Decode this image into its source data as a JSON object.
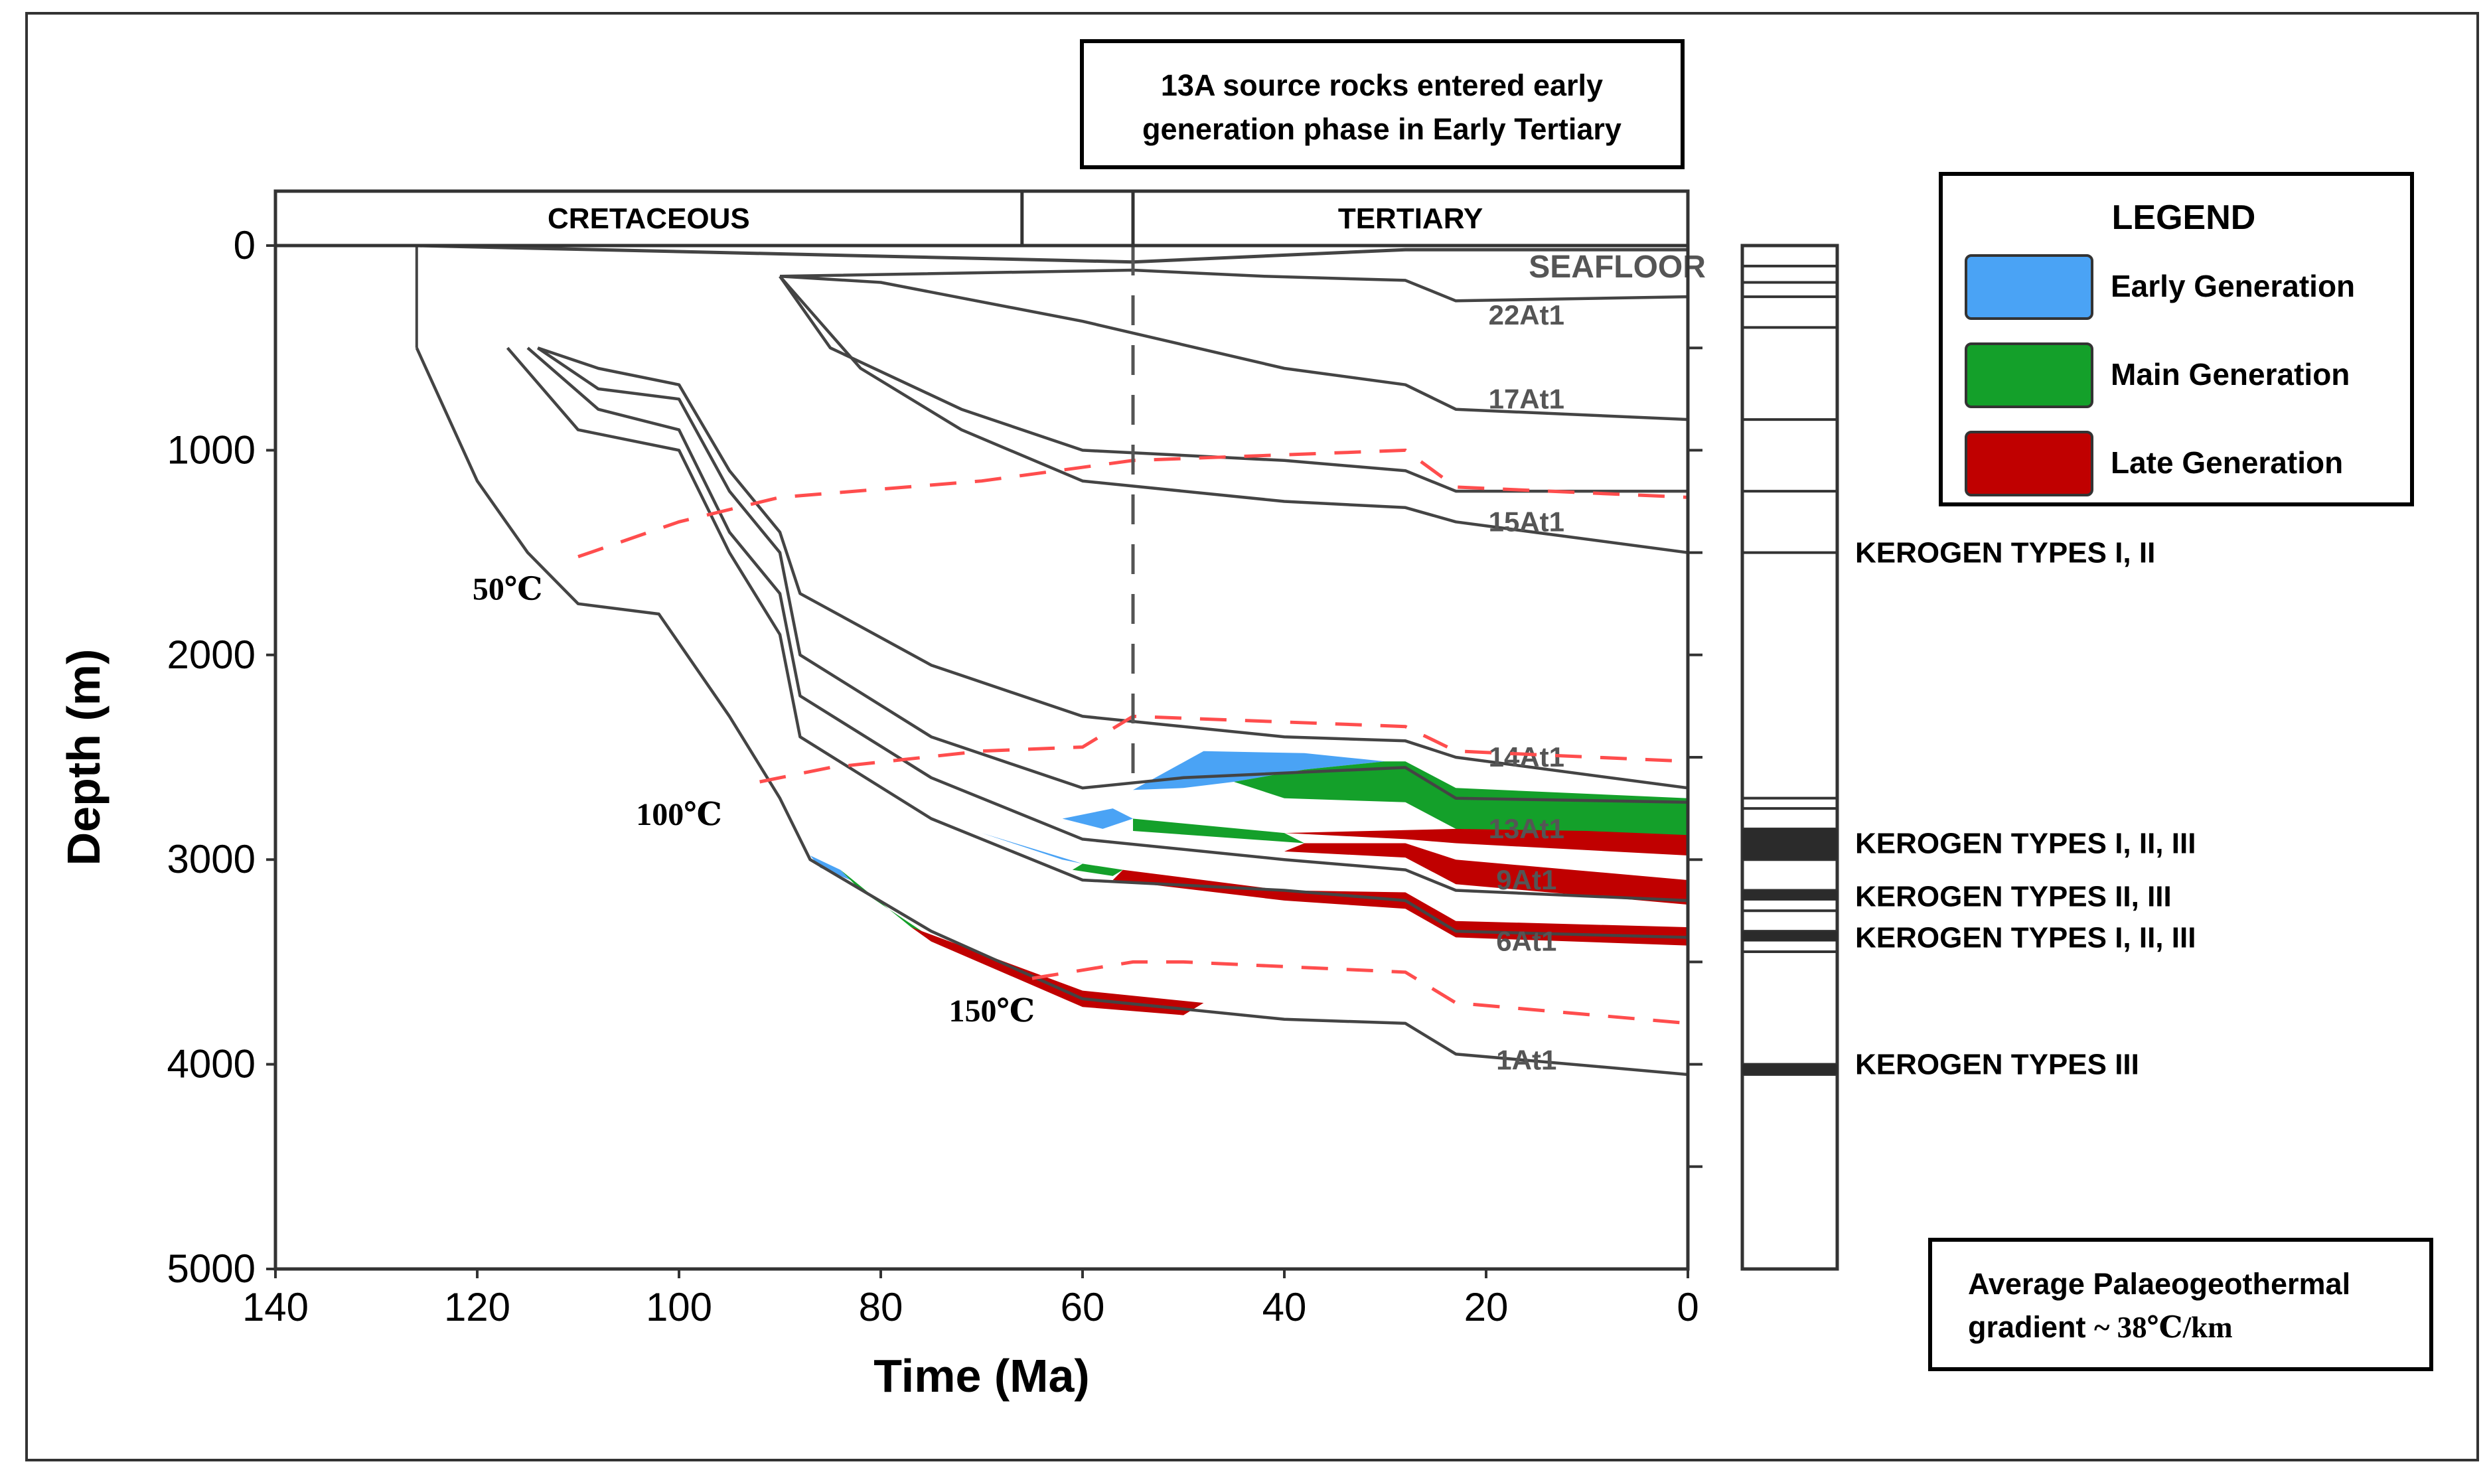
{
  "chart_data": {
    "type": "burial-history",
    "xlabel": "Time (Ma)",
    "ylabel": "Depth (m)",
    "xlim": [
      140,
      0
    ],
    "ylim": [
      0,
      5000
    ],
    "x_ticks": [
      140,
      120,
      100,
      80,
      60,
      40,
      20,
      0
    ],
    "y_ticks": [
      0,
      1000,
      2000,
      3000,
      4000,
      5000
    ],
    "periods": [
      {
        "name": "CRETACEOUS",
        "start": 140,
        "end": 66
      },
      {
        "name": "",
        "start": 66,
        "end": 55
      },
      {
        "name": "TERTIARY",
        "start": 55,
        "end": 0
      }
    ],
    "period_boundary_line": 55,
    "annotation": "13A source rocks entered early generation phase in Early Tertiary",
    "seafloor_label": "SEAFLOOR",
    "seafloor": [
      [
        126,
        0
      ],
      [
        55,
        80
      ],
      [
        28,
        20
      ],
      [
        0,
        20
      ]
    ],
    "horizons": [
      {
        "name": "22At1",
        "label_depth": 340,
        "points": [
          [
            90,
            150
          ],
          [
            55,
            120
          ],
          [
            42,
            150
          ],
          [
            28,
            170
          ],
          [
            23,
            270
          ],
          [
            0,
            250
          ]
        ]
      },
      {
        "name": "17At1",
        "label_depth": 750,
        "points": [
          [
            90,
            150
          ],
          [
            80,
            180
          ],
          [
            60,
            370
          ],
          [
            40,
            600
          ],
          [
            28,
            680
          ],
          [
            23,
            800
          ],
          [
            0,
            850
          ]
        ]
      },
      {
        "name": "",
        "label_depth": null,
        "points": [
          [
            90,
            150
          ],
          [
            85,
            500
          ],
          [
            72,
            800
          ],
          [
            60,
            1000
          ],
          [
            40,
            1050
          ],
          [
            28,
            1100
          ],
          [
            23,
            1200
          ],
          [
            0,
            1200
          ]
        ]
      },
      {
        "name": "15At1",
        "label_depth": 1350,
        "points": [
          [
            90,
            150
          ],
          [
            82,
            600
          ],
          [
            72,
            900
          ],
          [
            60,
            1150
          ],
          [
            40,
            1250
          ],
          [
            28,
            1280
          ],
          [
            23,
            1350
          ],
          [
            0,
            1500
          ]
        ]
      },
      {
        "name": "14At1",
        "label_depth": 2500,
        "points": [
          [
            114,
            500
          ],
          [
            108,
            600
          ],
          [
            100,
            680
          ],
          [
            95,
            1100
          ],
          [
            90,
            1400
          ],
          [
            88,
            1700
          ],
          [
            75,
            2050
          ],
          [
            60,
            2300
          ],
          [
            40,
            2400
          ],
          [
            28,
            2420
          ],
          [
            23,
            2500
          ],
          [
            0,
            2650
          ]
        ]
      },
      {
        "name": "13At1",
        "label_depth": 2850,
        "points": [
          [
            114,
            500
          ],
          [
            108,
            700
          ],
          [
            100,
            750
          ],
          [
            95,
            1200
          ],
          [
            90,
            1500
          ],
          [
            88,
            2000
          ],
          [
            75,
            2400
          ],
          [
            60,
            2650
          ],
          [
            50,
            2600
          ],
          [
            28,
            2550
          ],
          [
            23,
            2700
          ],
          [
            0,
            2720
          ]
        ]
      },
      {
        "name": "9At1",
        "label_depth": 3100,
        "points": [
          [
            115,
            500
          ],
          [
            108,
            800
          ],
          [
            100,
            900
          ],
          [
            95,
            1400
          ],
          [
            90,
            1700
          ],
          [
            88,
            2200
          ],
          [
            75,
            2600
          ],
          [
            60,
            2900
          ],
          [
            40,
            3000
          ],
          [
            28,
            3050
          ],
          [
            23,
            3150
          ],
          [
            0,
            3200
          ]
        ]
      },
      {
        "name": "6At1",
        "label_depth": 3400,
        "points": [
          [
            117,
            500
          ],
          [
            110,
            900
          ],
          [
            100,
            1000
          ],
          [
            95,
            1500
          ],
          [
            90,
            1900
          ],
          [
            88,
            2400
          ],
          [
            75,
            2800
          ],
          [
            60,
            3100
          ],
          [
            40,
            3150
          ],
          [
            28,
            3200
          ],
          [
            23,
            3350
          ],
          [
            0,
            3380
          ]
        ]
      },
      {
        "name": "1At1",
        "label_depth": 3980,
        "points": [
          [
            126,
            500
          ],
          [
            120,
            1150
          ],
          [
            115,
            1500
          ],
          [
            110,
            1750
          ],
          [
            102,
            1800
          ],
          [
            95,
            2300
          ],
          [
            90,
            2700
          ],
          [
            87,
            3000
          ],
          [
            75,
            3350
          ],
          [
            60,
            3680
          ],
          [
            40,
            3780
          ],
          [
            28,
            3800
          ],
          [
            23,
            3950
          ],
          [
            0,
            4050
          ]
        ]
      }
    ],
    "isotherms": [
      {
        "label": "50℃",
        "points": [
          [
            110,
            1520
          ],
          [
            100,
            1350
          ],
          [
            90,
            1230
          ],
          [
            70,
            1150
          ],
          [
            55,
            1050
          ],
          [
            28,
            1000
          ],
          [
            23,
            1180
          ],
          [
            0,
            1230
          ]
        ]
      },
      {
        "label": "100℃",
        "points": [
          [
            92,
            2620
          ],
          [
            85,
            2550
          ],
          [
            70,
            2470
          ],
          [
            60,
            2450
          ],
          [
            55,
            2300
          ],
          [
            28,
            2350
          ],
          [
            23,
            2470
          ],
          [
            0,
            2520
          ]
        ]
      },
      {
        "label": "150℃",
        "points": [
          [
            65,
            3580
          ],
          [
            55,
            3500
          ],
          [
            50,
            3500
          ],
          [
            28,
            3550
          ],
          [
            23,
            3700
          ],
          [
            0,
            3800
          ]
        ]
      }
    ],
    "generation_zones": [
      {
        "zone": "early",
        "polygon": [
          [
            55,
            2660
          ],
          [
            48,
            2470
          ],
          [
            38,
            2480
          ],
          [
            30,
            2520
          ],
          [
            38,
            2560
          ],
          [
            45,
            2620
          ],
          [
            50,
            2650
          ]
        ]
      },
      {
        "zone": "main",
        "polygon": [
          [
            45,
            2620
          ],
          [
            38,
            2560
          ],
          [
            30,
            2520
          ],
          [
            28,
            2520
          ],
          [
            23,
            2650
          ],
          [
            0,
            2700
          ],
          [
            0,
            2900
          ],
          [
            10,
            2870
          ],
          [
            23,
            2850
          ],
          [
            28,
            2720
          ],
          [
            40,
            2700
          ]
        ]
      },
      {
        "zone": "late",
        "polygon": [
          [
            0,
            2880
          ],
          [
            0,
            2980
          ],
          [
            23,
            2920
          ],
          [
            28,
            2900
          ],
          [
            40,
            2870
          ],
          [
            23,
            2850
          ],
          [
            10,
            2860
          ]
        ]
      },
      {
        "zone": "early",
        "polygon": [
          [
            62,
            2800
          ],
          [
            58,
            2850
          ],
          [
            55,
            2800
          ],
          [
            57,
            2750
          ]
        ]
      },
      {
        "zone": "main",
        "polygon": [
          [
            55,
            2800
          ],
          [
            40,
            2870
          ],
          [
            38,
            2920
          ],
          [
            55,
            2860
          ]
        ]
      },
      {
        "zone": "late",
        "polygon": [
          [
            38,
            2920
          ],
          [
            28,
            2920
          ],
          [
            23,
            3000
          ],
          [
            0,
            3100
          ],
          [
            0,
            3220
          ],
          [
            23,
            3120
          ],
          [
            28,
            2990
          ],
          [
            40,
            2960
          ]
        ]
      },
      {
        "zone": "early",
        "polygon": [
          [
            70,
            2870
          ],
          [
            62,
            3000
          ],
          [
            60,
            3020
          ],
          [
            68,
            2900
          ]
        ]
      },
      {
        "zone": "main",
        "polygon": [
          [
            60,
            3020
          ],
          [
            56,
            3050
          ],
          [
            57,
            3080
          ],
          [
            61,
            3050
          ]
        ]
      },
      {
        "zone": "late",
        "polygon": [
          [
            56,
            3050
          ],
          [
            40,
            3150
          ],
          [
            28,
            3160
          ],
          [
            23,
            3300
          ],
          [
            0,
            3330
          ],
          [
            0,
            3420
          ],
          [
            23,
            3380
          ],
          [
            28,
            3240
          ],
          [
            40,
            3200
          ],
          [
            57,
            3100
          ]
        ]
      },
      {
        "zone": "early",
        "polygon": [
          [
            87,
            2980
          ],
          [
            84,
            3050
          ],
          [
            83,
            3100
          ],
          [
            86,
            3040
          ]
        ]
      },
      {
        "zone": "main",
        "polygon": [
          [
            84,
            3050
          ],
          [
            77,
            3330
          ],
          [
            75,
            3380
          ],
          [
            82,
            3150
          ]
        ]
      },
      {
        "zone": "late",
        "polygon": [
          [
            77,
            3330
          ],
          [
            60,
            3640
          ],
          [
            48,
            3700
          ],
          [
            50,
            3760
          ],
          [
            60,
            3720
          ],
          [
            75,
            3400
          ]
        ]
      }
    ],
    "isotherm_label_positions": [
      {
        "label": "50℃",
        "x": 117,
        "y": 1730
      },
      {
        "label": "100℃",
        "x": 100,
        "y": 2830
      },
      {
        "label": "150℃",
        "x": 69,
        "y": 3790
      }
    ],
    "column": {
      "units": [
        0,
        100,
        180,
        250,
        400,
        850,
        1200,
        1500,
        2700,
        2750,
        2850,
        3000,
        3150,
        3250,
        3350,
        3450,
        4000,
        4050,
        5000
      ],
      "dark_bands": [
        [
          2850,
          3000
        ],
        [
          3150,
          3200
        ],
        [
          3350,
          3400
        ],
        [
          4000,
          4050
        ]
      ],
      "kerogen_labels": [
        {
          "depth": 1500,
          "text": "KEROGEN TYPES I, II"
        },
        {
          "depth": 2920,
          "text": "KEROGEN TYPES I, II, III"
        },
        {
          "depth": 3180,
          "text": "KEROGEN TYPES II, III"
        },
        {
          "depth": 3380,
          "text": "KEROGEN TYPES I, II, III"
        },
        {
          "depth": 4000,
          "text": "KEROGEN TYPES III"
        }
      ]
    },
    "legend": {
      "title": "LEGEND",
      "placement": "top-right",
      "entries": [
        {
          "label": "Early Generation",
          "color": "#4aa3f5"
        },
        {
          "label": "Main Generation",
          "color": "#14a02a"
        },
        {
          "label": "Late Generation",
          "color": "#c00000"
        }
      ]
    },
    "gradient_note": {
      "line1": "Average Palaeogeothermal",
      "line2_sans": "gradient ",
      "line2_serif": "~ 38℃/km"
    },
    "colors": {
      "early": "#4aa3f5",
      "main": "#14a02a",
      "late": "#c00000",
      "isotherm": "#ff4d4d",
      "horizon": "#444444"
    }
  }
}
